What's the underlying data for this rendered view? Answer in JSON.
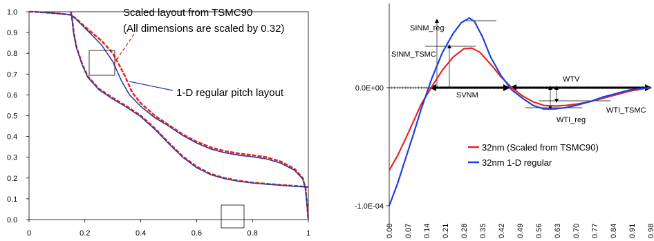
{
  "chart_data": [
    {
      "type": "line",
      "title": "",
      "xlabel": "",
      "ylabel": "",
      "xlim": [
        0,
        1
      ],
      "ylim": [
        0,
        1
      ],
      "x_ticks": [
        "0",
        "0.2",
        "0.4",
        "0.6",
        "0.8",
        "1"
      ],
      "y_ticks": [
        "0.0",
        "0.1",
        "0.2",
        "0.3",
        "0.4",
        "0.5",
        "0.6",
        "0.7",
        "0.8",
        "0.9",
        "1.0"
      ],
      "grid": false,
      "annotations": [
        {
          "text": "Scaled layout from TSMC90",
          "color": "#000000"
        },
        {
          "text": "(All dimensions are scaled by 0.32)",
          "color": "#000000"
        },
        {
          "text": "1-D regular pitch layout",
          "color": "#000000"
        }
      ],
      "series": [
        {
          "name": "Scaled layout from TSMC90",
          "color": "#e8231f",
          "style": "dashed",
          "curves": [
            {
              "x": [
                0,
                0.02,
                0.05,
                0.1,
                0.15,
                0.155,
                0.17,
                0.19,
                0.22,
                0.26,
                0.3,
                0.34,
                0.37,
                0.4,
                0.45,
                0.5,
                0.55,
                0.6,
                0.65,
                0.7,
                0.75,
                0.8,
                0.85,
                0.9,
                0.95,
                0.98,
                0.99,
                0.995,
                1.0
              ],
              "y": [
                1.0,
                1.0,
                0.997,
                0.992,
                0.985,
                0.98,
                0.965,
                0.94,
                0.905,
                0.86,
                0.8,
                0.7,
                0.61,
                0.56,
                0.5,
                0.455,
                0.41,
                0.375,
                0.348,
                0.33,
                0.318,
                0.31,
                0.3,
                0.28,
                0.245,
                0.2,
                0.15,
                0.08,
                0.0
              ]
            },
            {
              "x": [
                0.15,
                0.155,
                0.16,
                0.17,
                0.19,
                0.21,
                0.25,
                0.3,
                0.35,
                0.4,
                0.45,
                0.5,
                0.55,
                0.6,
                0.65,
                0.7,
                0.75,
                0.8,
                0.85,
                0.9,
                0.95,
                0.99,
                1.0
              ],
              "y": [
                1.0,
                0.96,
                0.9,
                0.83,
                0.75,
                0.69,
                0.63,
                0.585,
                0.545,
                0.5,
                0.44,
                0.37,
                0.305,
                0.255,
                0.22,
                0.2,
                0.187,
                0.178,
                0.172,
                0.167,
                0.162,
                0.158,
                0.157
              ]
            }
          ]
        },
        {
          "name": "1-D regular pitch layout",
          "color": "#2a3ea0",
          "style": "solid",
          "curves": [
            {
              "x": [
                0,
                0.02,
                0.05,
                0.1,
                0.15,
                0.155,
                0.17,
                0.19,
                0.22,
                0.26,
                0.3,
                0.33,
                0.36,
                0.4,
                0.45,
                0.5,
                0.55,
                0.6,
                0.65,
                0.7,
                0.75,
                0.8,
                0.85,
                0.9,
                0.95,
                0.98,
                0.99,
                0.995,
                1.0
              ],
              "y": [
                1.0,
                1.0,
                0.997,
                0.992,
                0.985,
                0.98,
                0.962,
                0.935,
                0.895,
                0.84,
                0.76,
                0.67,
                0.6,
                0.545,
                0.49,
                0.45,
                0.405,
                0.368,
                0.34,
                0.322,
                0.31,
                0.302,
                0.292,
                0.272,
                0.238,
                0.195,
                0.145,
                0.075,
                0.0
              ]
            },
            {
              "x": [
                0.15,
                0.155,
                0.16,
                0.17,
                0.19,
                0.21,
                0.25,
                0.3,
                0.35,
                0.4,
                0.45,
                0.5,
                0.55,
                0.6,
                0.65,
                0.7,
                0.75,
                0.8,
                0.85,
                0.9,
                0.95,
                0.99,
                1.0
              ],
              "y": [
                1.0,
                0.955,
                0.895,
                0.825,
                0.745,
                0.685,
                0.625,
                0.58,
                0.54,
                0.495,
                0.435,
                0.365,
                0.3,
                0.25,
                0.216,
                0.197,
                0.184,
                0.176,
                0.17,
                0.165,
                0.16,
                0.157,
                0.156
              ]
            }
          ]
        }
      ]
    },
    {
      "type": "line",
      "title": "",
      "xlabel": "",
      "ylabel": "",
      "categories": [
        "0.00",
        "0.07",
        "0.14",
        "0.21",
        "0.28",
        "0.35",
        "0.42",
        "0.49",
        "0.56",
        "0.63",
        "0.70",
        "0.77",
        "0.84",
        "0.91",
        "0.98"
      ],
      "x_range": [
        0,
        0.98
      ],
      "y_ticks": [
        "0.0E+00",
        "-1.0E-04"
      ],
      "ylim": [
        -0.00011,
        6.5e-05
      ],
      "grid": false,
      "legend": "lower-right",
      "annotations": [
        "SINM_reg",
        "SINM_TSMC",
        "SVNM",
        "WTV",
        "WTI_reg",
        "WTI_TSMC"
      ],
      "series": [
        {
          "name": "32nm (Scaled from TSMC90)",
          "color": "#e8231f",
          "x": [
            0.0,
            0.03,
            0.06,
            0.09,
            0.12,
            0.16,
            0.2,
            0.24,
            0.28,
            0.31,
            0.34,
            0.38,
            0.42,
            0.46,
            0.5,
            0.54,
            0.58,
            0.62,
            0.66,
            0.7,
            0.75,
            0.8,
            0.85,
            0.9,
            0.95,
            0.98
          ],
          "y": [
            -7e-05,
            -5.8e-05,
            -4.4e-05,
            -2.9e-05,
            -1.4e-05,
            1e-06,
            1.5e-05,
            2.6e-05,
            3.3e-05,
            3.35e-05,
            3e-05,
            2e-05,
            9e-06,
            0.0,
            -7e-06,
            -1.2e-05,
            -1.5e-05,
            -1.55e-05,
            -1.5e-05,
            -1.4e-05,
            -1.2e-05,
            -9e-06,
            -6e-06,
            -3e-06,
            -1e-06,
            0.0
          ]
        },
        {
          "name": "32nm 1-D regular",
          "color": "#1a3fe6",
          "x": [
            0.0,
            0.03,
            0.06,
            0.09,
            0.12,
            0.16,
            0.2,
            0.24,
            0.27,
            0.3,
            0.32,
            0.35,
            0.38,
            0.42,
            0.46,
            0.5,
            0.54,
            0.58,
            0.62,
            0.66,
            0.7,
            0.75,
            0.8,
            0.85,
            0.9,
            0.95,
            0.98
          ],
          "y": [
            -0.0001,
            -8.2e-05,
            -6.1e-05,
            -4e-05,
            -1.8e-05,
            8e-06,
            3e-05,
            4.6e-05,
            5.5e-05,
            5.9e-05,
            5.6e-05,
            4.3e-05,
            2.6e-05,
            1e-05,
            -2e-06,
            -9e-06,
            -1.5e-05,
            -1.8e-05,
            -1.8e-05,
            -1.7e-05,
            -1.5e-05,
            -1.2e-05,
            -8e-06,
            -5e-06,
            -2e-06,
            -5e-07,
            0.0
          ]
        }
      ]
    }
  ]
}
